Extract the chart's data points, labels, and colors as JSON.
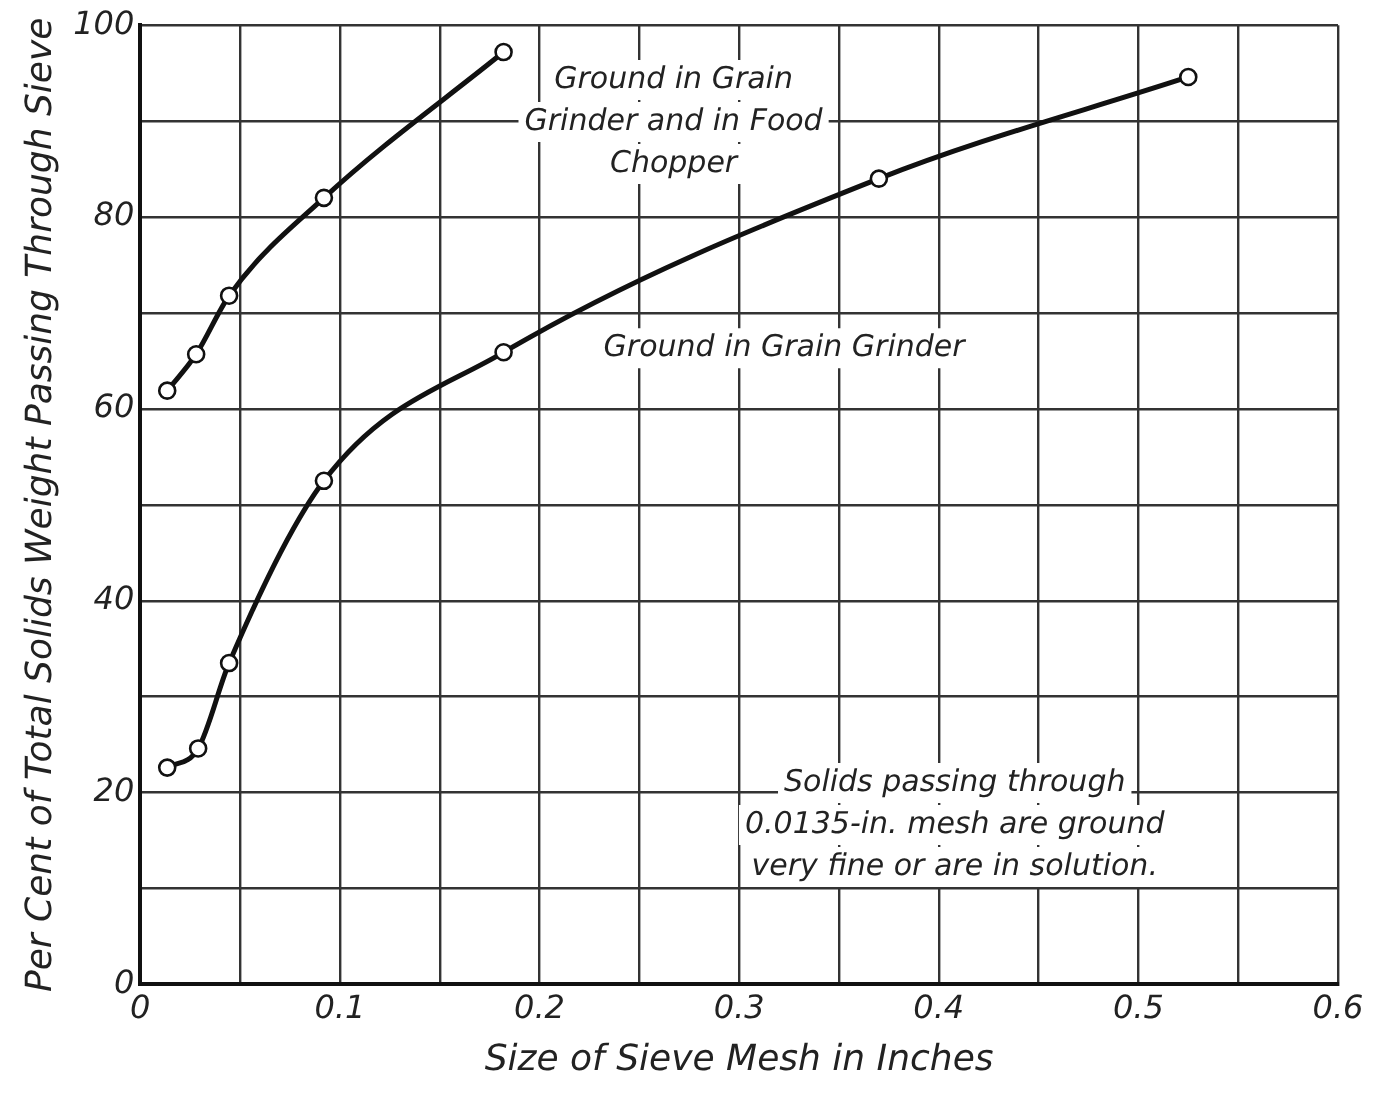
{
  "chart_data": {
    "type": "line",
    "xlabel": "Size of Sieve Mesh in Inches",
    "ylabel": "Per Cent of Total Solids Weight Passing Through Sieve",
    "xlim": [
      0,
      0.6
    ],
    "ylim": [
      0,
      100
    ],
    "xticks": [
      0,
      {
        "value": 0.05,
        "label": null
      },
      0.1,
      {
        "value": 0.15,
        "label": null
      },
      0.2,
      {
        "value": 0.25,
        "label": null
      },
      0.3,
      {
        "value": 0.35,
        "label": null
      },
      0.4,
      {
        "value": 0.45,
        "label": null
      },
      0.5,
      {
        "value": 0.55,
        "label": null
      },
      0.6
    ],
    "yticks": [
      0,
      {
        "value": 10,
        "label": null
      },
      20,
      {
        "value": 30,
        "label": null
      },
      40,
      {
        "value": 50,
        "label": null
      },
      60,
      {
        "value": 70,
        "label": null
      },
      80,
      {
        "value": 90,
        "label": null
      },
      100
    ],
    "grid": true,
    "legend": false,
    "marker": "circle",
    "line_style": "solid",
    "series": [
      {
        "name": "Ground in Grain Grinder and in Food Chopper",
        "color": "#111111",
        "x": [
          0.0135,
          0.028,
          0.0445,
          0.092,
          0.182
        ],
        "values": [
          61.9,
          65.7,
          71.8,
          82.0,
          97.2
        ]
      },
      {
        "name": "Ground in Grain Grinder",
        "color": "#111111",
        "x": [
          0.0135,
          0.029,
          0.0445,
          0.092,
          0.182,
          0.37,
          0.525
        ],
        "values": [
          22.6,
          24.6,
          33.5,
          52.5,
          65.9,
          84.0,
          94.6
        ]
      }
    ],
    "annotations": [
      "Solids passing through 0.0135-in. mesh are ground very fine or are in solution."
    ]
  }
}
